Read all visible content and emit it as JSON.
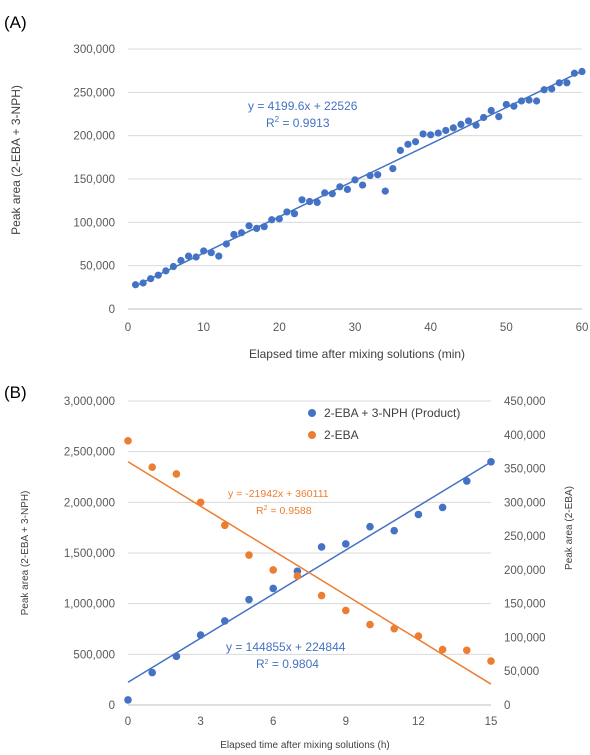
{
  "chart_data": [
    {
      "panel_label": "(A)",
      "type": "scatter",
      "xlabel": "Elapsed time after mixing solutions (min)",
      "ylabel": "Peak area (2-EBA + 3-NPH)",
      "xlim": [
        0,
        60
      ],
      "ylim": [
        0,
        300000
      ],
      "x_ticks": [
        "0",
        "10",
        "20",
        "30",
        "40",
        "50",
        "60"
      ],
      "y_ticks": [
        "0",
        "50,000",
        "100,000",
        "150,000",
        "200,000",
        "250,000",
        "300,000"
      ],
      "trendline": {
        "slope": 4199.6,
        "intercept": 22526
      },
      "equation": "y = 4199.6x + 22526",
      "r2_prefix": "R",
      "r2_value": " = 0.9913",
      "series": [
        {
          "color": "#4472C4",
          "x": [
            1,
            2,
            3,
            4,
            5,
            6,
            7,
            8,
            9,
            10,
            11,
            12,
            13,
            14,
            15,
            16,
            17,
            18,
            19,
            20,
            21,
            22,
            23,
            24,
            25,
            26,
            27,
            28,
            29,
            30,
            31,
            32,
            33,
            34,
            35,
            36,
            37,
            38,
            39,
            40,
            41,
            42,
            43,
            44,
            45,
            46,
            47,
            48,
            49,
            50,
            51,
            52,
            53,
            54,
            55,
            56,
            57,
            58,
            59,
            60
          ],
          "y": [
            28000,
            30000,
            35000,
            39000,
            44000,
            49000,
            56000,
            61000,
            60000,
            67000,
            65000,
            61000,
            75000,
            86000,
            88000,
            96000,
            93000,
            95000,
            103000,
            104000,
            112000,
            110000,
            126000,
            124000,
            123000,
            134000,
            133000,
            141000,
            138000,
            149000,
            143000,
            154000,
            155000,
            136000,
            162000,
            183000,
            190000,
            193000,
            202000,
            201000,
            203000,
            206000,
            209000,
            213000,
            217000,
            212000,
            221000,
            229000,
            222000,
            236000,
            234000,
            240000,
            241000,
            240000,
            253000,
            254000,
            261000,
            261000,
            272000,
            274000
          ]
        }
      ]
    },
    {
      "panel_label": "(B)",
      "type": "scatter",
      "xlabel": "Elapsed time after mixing solutions (h)",
      "ylabel": "Peak area (2-EBA + 3-NPH)",
      "y2label": "Peak area (2-EBA)",
      "xlim": [
        0,
        15
      ],
      "ylim": [
        0,
        3000000
      ],
      "y2lim": [
        0,
        450000
      ],
      "x_ticks": [
        "0",
        "3",
        "6",
        "9",
        "12",
        "15"
      ],
      "y_ticks": [
        "0",
        "500,000",
        "1,000,000",
        "1,500,000",
        "2,000,000",
        "2,500,000",
        "3,000,000"
      ],
      "y2_ticks": [
        "0",
        "50,000",
        "100,000",
        "150,000",
        "200,000",
        "250,000",
        "300,000",
        "350,000",
        "400,000",
        "450,000"
      ],
      "legend_position": "top-right",
      "series": [
        {
          "name": "2-EBA + 3-NPH (Product)",
          "color": "#4472C4",
          "axis": "left",
          "x": [
            0,
            1,
            2,
            3,
            4,
            5,
            6,
            7,
            8,
            9,
            10,
            11,
            12,
            13,
            14,
            15
          ],
          "y": [
            50000,
            320000,
            480000,
            690000,
            830000,
            1040000,
            1150000,
            1320000,
            1560000,
            1590000,
            1760000,
            1720000,
            1880000,
            1950000,
            2210000,
            2400000
          ],
          "trendline": {
            "slope": 144855,
            "intercept": 224844
          },
          "equation": "y = 144855x + 224844",
          "r2_prefix": "R",
          "r2_value": " = 0.9804"
        },
        {
          "name": "2-EBA",
          "color": "#ED7D31",
          "axis": "right",
          "x": [
            0,
            1,
            2,
            3,
            4,
            5,
            6,
            7,
            8,
            9,
            10,
            11,
            12,
            13,
            14,
            15
          ],
          "y": [
            391000,
            352000,
            342000,
            300000,
            266000,
            222000,
            200000,
            191000,
            162000,
            140000,
            119000,
            113000,
            102000,
            82000,
            81000,
            65000
          ],
          "trendline": {
            "slope": -21942,
            "intercept": 360111
          },
          "equation": "y = -21942x + 360111",
          "r2_prefix": "R",
          "r2_value": " = 0.9588"
        }
      ]
    }
  ]
}
